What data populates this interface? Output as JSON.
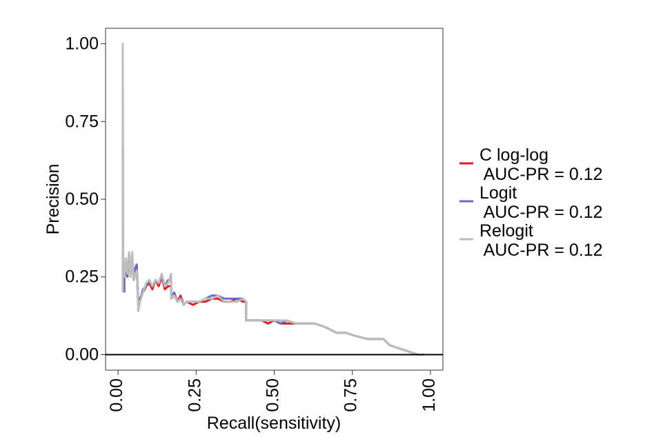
{
  "chart_data": {
    "type": "line",
    "title": "",
    "xlabel": "Recall(sensitivity)",
    "ylabel": "Precision",
    "xlim": [
      -0.04,
      1.04
    ],
    "ylim": [
      -0.05,
      1.05
    ],
    "x_ticks": [
      "0.00",
      "0.25",
      "0.50",
      "0.75",
      "1.00"
    ],
    "y_ticks": [
      "0.00",
      "0.25",
      "0.50",
      "0.75",
      "1.00"
    ],
    "grid": false,
    "legend_position": "right",
    "baseline": {
      "y": 0.0,
      "color": "#000000"
    },
    "series": [
      {
        "name": "C log-log\n AUC-PR = 0.12",
        "color": "#e41a1c",
        "points": [
          [
            0.02,
            0.2
          ],
          [
            0.02,
            0.27
          ],
          [
            0.03,
            0.25
          ],
          [
            0.035,
            0.32
          ],
          [
            0.04,
            0.26
          ],
          [
            0.045,
            0.31
          ],
          [
            0.05,
            0.24
          ],
          [
            0.055,
            0.26
          ],
          [
            0.06,
            0.27
          ],
          [
            0.065,
            0.15
          ],
          [
            0.07,
            0.18
          ],
          [
            0.08,
            0.2
          ],
          [
            0.09,
            0.22
          ],
          [
            0.1,
            0.23
          ],
          [
            0.11,
            0.21
          ],
          [
            0.12,
            0.24
          ],
          [
            0.13,
            0.22
          ],
          [
            0.14,
            0.25
          ],
          [
            0.15,
            0.21
          ],
          [
            0.16,
            0.22
          ],
          [
            0.17,
            0.22
          ],
          [
            0.17,
            0.18
          ],
          [
            0.18,
            0.19
          ],
          [
            0.19,
            0.17
          ],
          [
            0.2,
            0.19
          ],
          [
            0.21,
            0.16
          ],
          [
            0.22,
            0.17
          ],
          [
            0.24,
            0.16
          ],
          [
            0.26,
            0.17
          ],
          [
            0.28,
            0.17
          ],
          [
            0.3,
            0.18
          ],
          [
            0.32,
            0.18
          ],
          [
            0.34,
            0.17
          ],
          [
            0.36,
            0.17
          ],
          [
            0.38,
            0.18
          ],
          [
            0.4,
            0.17
          ],
          [
            0.41,
            0.17
          ],
          [
            0.41,
            0.11
          ],
          [
            0.43,
            0.11
          ],
          [
            0.46,
            0.11
          ],
          [
            0.48,
            0.1
          ],
          [
            0.5,
            0.11
          ],
          [
            0.52,
            0.1
          ],
          [
            0.54,
            0.1
          ],
          [
            0.57,
            0.1
          ],
          [
            0.6,
            0.1
          ],
          [
            0.63,
            0.1
          ],
          [
            0.66,
            0.09
          ],
          [
            0.68,
            0.08
          ],
          [
            0.7,
            0.07
          ],
          [
            0.73,
            0.07
          ],
          [
            0.76,
            0.06
          ],
          [
            0.8,
            0.05
          ],
          [
            0.85,
            0.05
          ],
          [
            0.87,
            0.03
          ],
          [
            0.9,
            0.02
          ],
          [
            0.93,
            0.01
          ],
          [
            0.96,
            0.0
          ],
          [
            0.98,
            0.0
          ]
        ]
      },
      {
        "name": "Logit\n AUC-PR = 0.12",
        "color": "#6a6ac9",
        "points": [
          [
            0.02,
            0.2
          ],
          [
            0.02,
            0.27
          ],
          [
            0.03,
            0.25
          ],
          [
            0.035,
            0.32
          ],
          [
            0.04,
            0.26
          ],
          [
            0.045,
            0.31
          ],
          [
            0.05,
            0.24
          ],
          [
            0.055,
            0.28
          ],
          [
            0.06,
            0.29
          ],
          [
            0.065,
            0.15
          ],
          [
            0.07,
            0.17
          ],
          [
            0.08,
            0.21
          ],
          [
            0.09,
            0.22
          ],
          [
            0.1,
            0.24
          ],
          [
            0.11,
            0.22
          ],
          [
            0.12,
            0.24
          ],
          [
            0.13,
            0.23
          ],
          [
            0.14,
            0.25
          ],
          [
            0.15,
            0.22
          ],
          [
            0.16,
            0.24
          ],
          [
            0.17,
            0.24
          ],
          [
            0.17,
            0.19
          ],
          [
            0.18,
            0.2
          ],
          [
            0.19,
            0.17
          ],
          [
            0.2,
            0.18
          ],
          [
            0.21,
            0.16
          ],
          [
            0.22,
            0.17
          ],
          [
            0.24,
            0.17
          ],
          [
            0.26,
            0.17
          ],
          [
            0.28,
            0.18
          ],
          [
            0.3,
            0.19
          ],
          [
            0.32,
            0.19
          ],
          [
            0.34,
            0.18
          ],
          [
            0.36,
            0.18
          ],
          [
            0.38,
            0.18
          ],
          [
            0.4,
            0.18
          ],
          [
            0.41,
            0.17
          ],
          [
            0.41,
            0.11
          ],
          [
            0.43,
            0.11
          ],
          [
            0.46,
            0.11
          ],
          [
            0.48,
            0.11
          ],
          [
            0.5,
            0.11
          ],
          [
            0.52,
            0.1
          ],
          [
            0.54,
            0.11
          ],
          [
            0.57,
            0.1
          ],
          [
            0.6,
            0.1
          ],
          [
            0.63,
            0.1
          ],
          [
            0.66,
            0.09
          ],
          [
            0.68,
            0.08
          ],
          [
            0.7,
            0.07
          ],
          [
            0.73,
            0.07
          ],
          [
            0.76,
            0.06
          ],
          [
            0.8,
            0.05
          ],
          [
            0.85,
            0.05
          ],
          [
            0.87,
            0.03
          ],
          [
            0.9,
            0.02
          ],
          [
            0.93,
            0.01
          ],
          [
            0.96,
            0.0
          ],
          [
            0.98,
            0.0
          ]
        ]
      },
      {
        "name": "Relogit\n AUC-PR = 0.12",
        "color": "#bdbdbd",
        "points": [
          [
            0.015,
            0.2
          ],
          [
            0.015,
            1.0
          ],
          [
            0.017,
            0.27
          ],
          [
            0.02,
            0.25
          ],
          [
            0.025,
            0.31
          ],
          [
            0.03,
            0.26
          ],
          [
            0.035,
            0.33
          ],
          [
            0.04,
            0.25
          ],
          [
            0.045,
            0.33
          ],
          [
            0.05,
            0.24
          ],
          [
            0.055,
            0.26
          ],
          [
            0.06,
            0.27
          ],
          [
            0.065,
            0.14
          ],
          [
            0.07,
            0.17
          ],
          [
            0.08,
            0.2
          ],
          [
            0.09,
            0.23
          ],
          [
            0.1,
            0.24
          ],
          [
            0.11,
            0.22
          ],
          [
            0.12,
            0.24
          ],
          [
            0.13,
            0.23
          ],
          [
            0.14,
            0.26
          ],
          [
            0.15,
            0.22
          ],
          [
            0.16,
            0.23
          ],
          [
            0.17,
            0.26
          ],
          [
            0.17,
            0.18
          ],
          [
            0.18,
            0.19
          ],
          [
            0.19,
            0.17
          ],
          [
            0.2,
            0.18
          ],
          [
            0.21,
            0.16
          ],
          [
            0.22,
            0.17
          ],
          [
            0.24,
            0.17
          ],
          [
            0.26,
            0.17
          ],
          [
            0.28,
            0.18
          ],
          [
            0.3,
            0.18
          ],
          [
            0.32,
            0.19
          ],
          [
            0.34,
            0.17
          ],
          [
            0.36,
            0.17
          ],
          [
            0.38,
            0.17
          ],
          [
            0.4,
            0.18
          ],
          [
            0.41,
            0.17
          ],
          [
            0.41,
            0.11
          ],
          [
            0.43,
            0.11
          ],
          [
            0.46,
            0.11
          ],
          [
            0.48,
            0.11
          ],
          [
            0.5,
            0.11
          ],
          [
            0.52,
            0.11
          ],
          [
            0.54,
            0.11
          ],
          [
            0.57,
            0.1
          ],
          [
            0.6,
            0.1
          ],
          [
            0.63,
            0.1
          ],
          [
            0.66,
            0.09
          ],
          [
            0.68,
            0.08
          ],
          [
            0.7,
            0.07
          ],
          [
            0.73,
            0.07
          ],
          [
            0.76,
            0.06
          ],
          [
            0.8,
            0.05
          ],
          [
            0.85,
            0.05
          ],
          [
            0.87,
            0.03
          ],
          [
            0.9,
            0.02
          ],
          [
            0.93,
            0.01
          ],
          [
            0.96,
            0.0
          ],
          [
            0.98,
            0.0
          ]
        ]
      }
    ]
  }
}
